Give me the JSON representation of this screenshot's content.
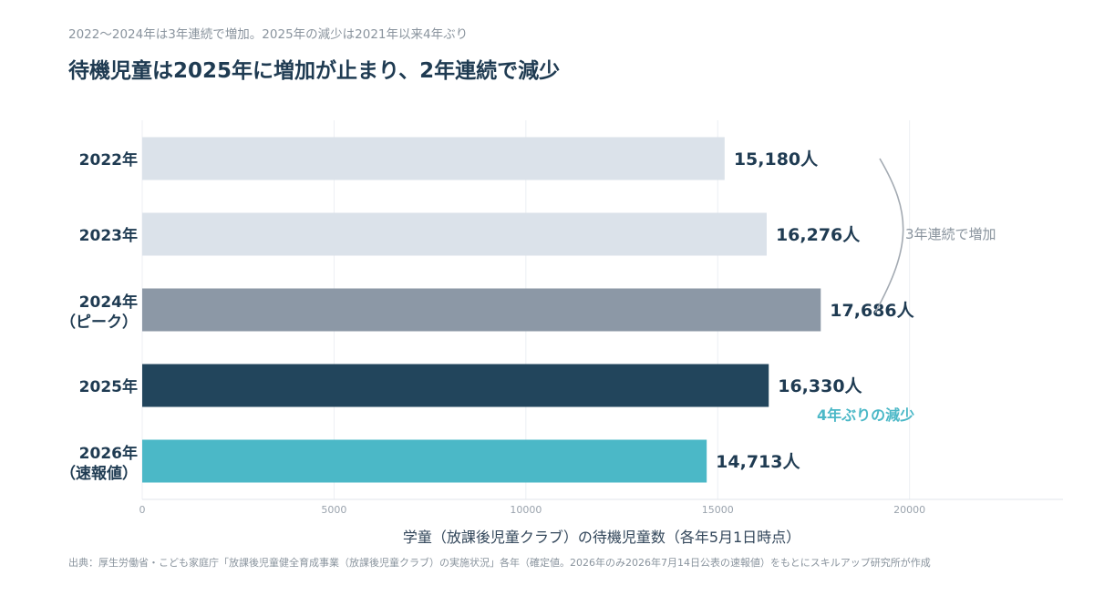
{
  "subtitle": "2022〜2024年は3年連続で増加。2025年の減少は2021年以来4年ぶり",
  "title": "待機児童は2025年に増加が止まり、2年連続で減少",
  "source": "出典：厚生労働省・こども家庭庁「放課後児童健全育成事業（放課後児童クラブ）の実施状況」各年（確定値。2026年のみ2026年7月14日公表の速報値）をもとにスキルアップ研究所が作成",
  "chart_data": {
    "type": "bar",
    "orientation": "horizontal",
    "categories": [
      "2022年",
      "2023年",
      "2024年\n（ピーク）",
      "2025年",
      "2026年\n（速報値）"
    ],
    "values": [
      15180,
      16276,
      17686,
      16330,
      14713
    ],
    "data_labels": [
      "15,180人",
      "16,276人",
      "17,686人",
      "16,330人",
      "14,713人"
    ],
    "colors": [
      "#dbe2ea",
      "#dbe2ea",
      "#8c98a6",
      "#22455c",
      "#4bb8c7"
    ],
    "xlabel": "学童（放課後児童クラブ）の待機児童数（各年5月1日時点）",
    "ylabel": "",
    "xlim": [
      0,
      24000
    ],
    "xticks": [
      0,
      5000,
      10000,
      15000,
      20000
    ],
    "grid": true,
    "annotations": [
      {
        "text": "3年連続で増加",
        "spans": [
          "2022年",
          "2024年"
        ],
        "color": "#8a949e"
      },
      {
        "text": "4年ぶりの減少",
        "category": "2025年",
        "color": "#4bb8c7"
      }
    ]
  }
}
